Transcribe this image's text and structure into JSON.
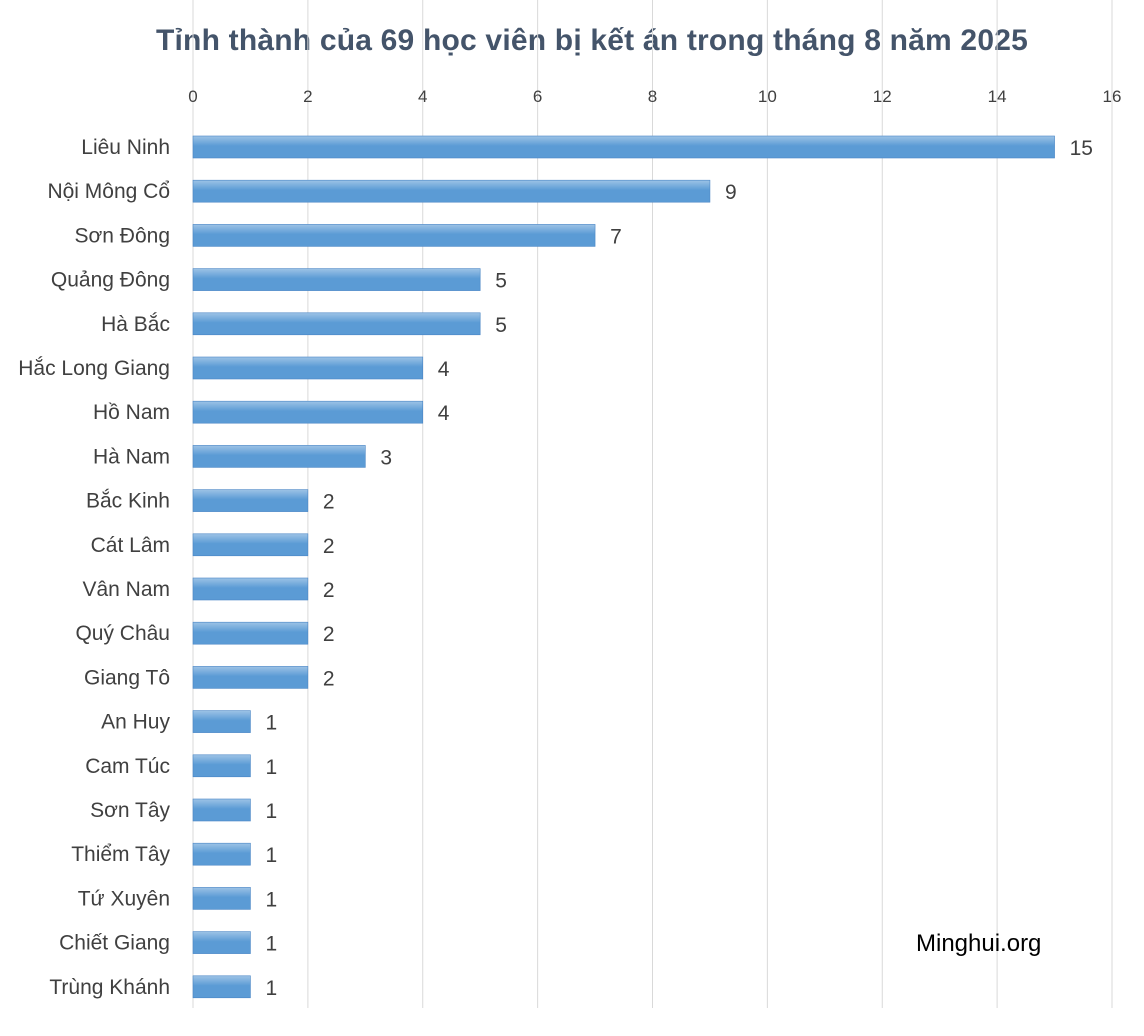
{
  "chart_data": {
    "type": "bar",
    "orientation": "horizontal",
    "title": "Tỉnh thành của 69 học viên bị kết án trong tháng 8 năm 2025",
    "categories": [
      "Liêu Ninh",
      "Nội Mông Cổ",
      "Sơn Đông",
      "Quảng Đông",
      "Hà Bắc",
      "Hắc Long Giang",
      "Hồ Nam",
      "Hà Nam",
      "Bắc Kinh",
      "Cát Lâm",
      "Vân Nam",
      "Quý Châu",
      "Giang Tô",
      "An Huy",
      "Cam Túc",
      "Sơn Tây",
      "Thiểm Tây",
      "Tứ Xuyên",
      "Chiết Giang",
      "Trùng Khánh"
    ],
    "values": [
      15,
      9,
      7,
      5,
      5,
      4,
      4,
      3,
      2,
      2,
      2,
      2,
      2,
      1,
      1,
      1,
      1,
      1,
      1,
      1
    ],
    "xlim": [
      0,
      16
    ],
    "xticks": [
      0,
      2,
      4,
      6,
      8,
      10,
      12,
      14,
      16
    ],
    "xaxis_position": "top",
    "grid": true,
    "data_labels": true,
    "bar_color": "#5b9bd5",
    "bar_color_light": "#9dc3e6"
  },
  "watermark": "Minghui.org"
}
